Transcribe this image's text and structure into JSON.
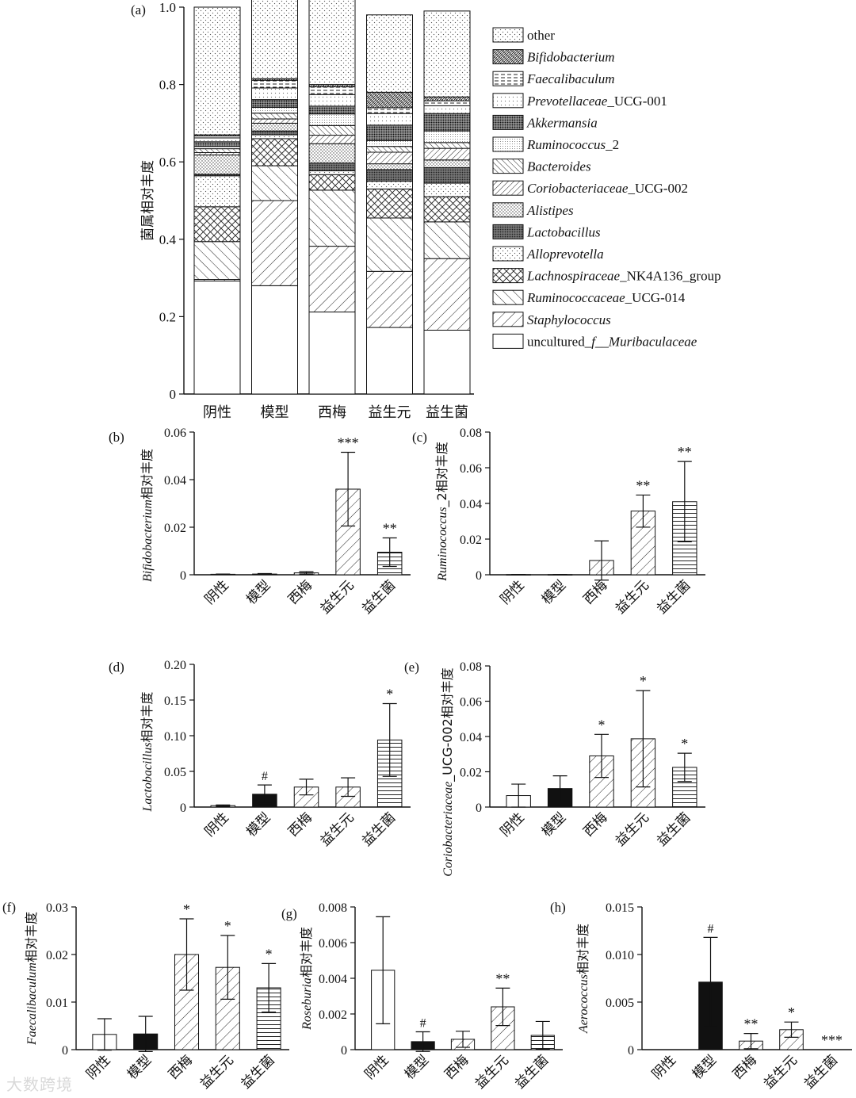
{
  "watermark": "大数跨境",
  "chart_data": [
    {
      "id": "a",
      "panel_label": "(a)",
      "type": "bar",
      "stacked": true,
      "ylabel": "菌属相对丰度",
      "ylim": [
        0,
        1.0
      ],
      "yticks": [
        "0",
        "0.2",
        "0.4",
        "0.6",
        "0.8",
        "1.0"
      ],
      "categories": [
        "阴性",
        "模型",
        "西梅",
        "益生元",
        "益生菌"
      ],
      "legend_position": "right",
      "series": [
        {
          "name": "uncultured_f__Muribaculaceae",
          "roman_prefix": "uncultured_",
          "italic_part": "f__Muribaculaceae",
          "roman_suffix": "",
          "pattern": "solid-white",
          "values": [
            0.292,
            0.28,
            0.212,
            0.172,
            0.165
          ]
        },
        {
          "name": "Staphylococcus",
          "roman_prefix": "",
          "italic_part": "Staphylococcus",
          "roman_suffix": "",
          "pattern": "diag-fwd",
          "values": [
            0.004,
            0.22,
            0.17,
            0.145,
            0.185
          ]
        },
        {
          "name": "Ruminococcaceae_UCG-014",
          "roman_prefix": "",
          "italic_part": "Ruminococcaceae",
          "roman_suffix": "_UCG-014",
          "pattern": "diag-back",
          "values": [
            0.098,
            0.09,
            0.145,
            0.138,
            0.095
          ]
        },
        {
          "name": "Lachnospiraceae_NK4A136_group",
          "roman_prefix": "",
          "italic_part": "Lachnospiraceae",
          "roman_suffix": "_NK4A136_group",
          "pattern": "crosshatch",
          "values": [
            0.09,
            0.07,
            0.04,
            0.075,
            0.065
          ]
        },
        {
          "name": "Alloprevotella",
          "roman_prefix": "",
          "italic_part": "Alloprevotella",
          "roman_suffix": "",
          "pattern": "dots-sparse",
          "values": [
            0.08,
            0.01,
            0.01,
            0.02,
            0.035
          ]
        },
        {
          "name": "Lactobacillus",
          "roman_prefix": "",
          "italic_part": "Lactobacillus",
          "roman_suffix": "",
          "pattern": "dots-dense",
          "values": [
            0.004,
            0.01,
            0.02,
            0.03,
            0.04
          ]
        },
        {
          "name": "Alistipes",
          "roman_prefix": "",
          "italic_part": "Alistipes",
          "roman_suffix": "",
          "pattern": "dots-medium",
          "values": [
            0.05,
            0.02,
            0.05,
            0.015,
            0.02
          ]
        },
        {
          "name": "Coriobacteriaceae_UCG-002",
          "roman_prefix": "",
          "italic_part": "Coriobacteriaceae",
          "roman_suffix": "_UCG-002",
          "pattern": "diag-fwd-dense",
          "values": [
            0.006,
            0.011,
            0.022,
            0.03,
            0.03
          ]
        },
        {
          "name": "Bacteroides",
          "roman_prefix": "",
          "italic_part": "Bacteroides",
          "roman_suffix": "",
          "pattern": "diag-back-dense",
          "values": [
            0.01,
            0.015,
            0.025,
            0.015,
            0.015
          ]
        },
        {
          "name": "Ruminococcus_2",
          "roman_prefix": "",
          "italic_part": "Ruminococcus",
          "roman_suffix": "_2",
          "pattern": "dots-fine",
          "values": [
            0.006,
            0.015,
            0.03,
            0.015,
            0.03
          ]
        },
        {
          "name": "Akkermansia",
          "roman_prefix": "",
          "italic_part": "Akkermansia",
          "roman_suffix": "",
          "pattern": "dots-heavy",
          "values": [
            0.012,
            0.02,
            0.02,
            0.04,
            0.045
          ]
        },
        {
          "name": "Prevotellaceae_UCG-001",
          "roman_prefix": "",
          "italic_part": "Prevotellaceae",
          "roman_suffix": "_UCG-001",
          "pattern": "dots-light",
          "values": [
            0.01,
            0.03,
            0.03,
            0.03,
            0.02
          ]
        },
        {
          "name": "Faecalibaculum",
          "roman_prefix": "",
          "italic_part": "Faecalibaculum",
          "roman_suffix": "",
          "pattern": "hdash",
          "values": [
            0.005,
            0.02,
            0.02,
            0.015,
            0.013
          ]
        },
        {
          "name": "Bifidobacterium",
          "roman_prefix": "",
          "italic_part": "Bifidobacterium",
          "roman_suffix": "",
          "pattern": "wave",
          "values": [
            0.003,
            0.004,
            0.006,
            0.04,
            0.01
          ]
        },
        {
          "name": "other",
          "roman_prefix": "other",
          "italic_part": "",
          "roman_suffix": "",
          "pattern": "dots-sparse",
          "values": [
            0.33,
            0.205,
            0.23,
            0.2,
            0.222
          ]
        }
      ]
    },
    {
      "id": "b",
      "panel_label": "(b)",
      "type": "bar",
      "ylabel_italic": "Bifidobacterium",
      "ylabel_rest": "相对丰度",
      "ylim": [
        0,
        0.06
      ],
      "yticks": [
        "0",
        "0.02",
        "0.04",
        "0.06"
      ],
      "categories": [
        "阴性",
        "模型",
        "西梅",
        "益生元",
        "益生菌"
      ],
      "values": [
        0.0002,
        0.0003,
        0.0008,
        0.036,
        0.0095
      ],
      "errors": [
        0.0001,
        0.0002,
        0.0005,
        0.0155,
        0.006
      ],
      "annotations": [
        "",
        "",
        "",
        "***",
        "**"
      ],
      "patterns": [
        "empty",
        "empty",
        "diag-fwd",
        "diag-fwd",
        "hlines"
      ]
    },
    {
      "id": "c",
      "panel_label": "(c)",
      "type": "bar",
      "ylabel_italic": "Ruminococcus",
      "ylabel_rest": "_2相对丰度",
      "ylim": [
        0,
        0.08
      ],
      "yticks": [
        "0",
        "0.02",
        "0.04",
        "0.06",
        "0.08"
      ],
      "categories": [
        "阴性",
        "模型",
        "西梅",
        "益生元",
        "益生菌"
      ],
      "values": [
        0.0001,
        0.0001,
        0.008,
        0.0357,
        0.041
      ],
      "errors": [
        5e-05,
        5e-05,
        0.011,
        0.009,
        0.0225
      ],
      "annotations": [
        "",
        "",
        "",
        "**",
        "**"
      ],
      "patterns": [
        "empty",
        "empty",
        "diag-fwd",
        "diag-fwd",
        "hlines"
      ]
    },
    {
      "id": "d",
      "panel_label": "(d)",
      "type": "bar",
      "ylabel_italic": "Lactobacillus",
      "ylabel_rest": "相对丰度",
      "ylim": [
        0,
        0.2
      ],
      "yticks": [
        "0",
        "0.05",
        "0.10",
        "0.15",
        "0.20"
      ],
      "categories": [
        "阴性",
        "模型",
        "西梅",
        "益生元",
        "益生菌"
      ],
      "values": [
        0.002,
        0.018,
        0.028,
        0.028,
        0.094
      ],
      "errors": [
        0.001,
        0.013,
        0.011,
        0.013,
        0.051
      ],
      "annotations": [
        "",
        "#",
        "",
        "",
        "*"
      ],
      "patterns": [
        "empty",
        "solid-black",
        "diag-fwd",
        "diag-fwd",
        "hlines"
      ]
    },
    {
      "id": "e",
      "panel_label": "(e)",
      "type": "bar",
      "ylabel_italic": "Coriobacteriaceae",
      "ylabel_rest": "_UCG-002相对丰度",
      "ylim": [
        0,
        0.08
      ],
      "yticks": [
        "0",
        "0.02",
        "0.04",
        "0.06",
        "0.08"
      ],
      "categories": [
        "阴性",
        "模型",
        "西梅",
        "益生元",
        "益生菌"
      ],
      "values": [
        0.0065,
        0.0105,
        0.029,
        0.0387,
        0.0225
      ],
      "errors": [
        0.0065,
        0.0072,
        0.0122,
        0.0273,
        0.008
      ],
      "annotations": [
        "",
        "",
        "*",
        "*",
        "*"
      ],
      "patterns": [
        "empty",
        "solid-black",
        "diag-fwd",
        "diag-fwd",
        "hlines"
      ]
    },
    {
      "id": "f",
      "panel_label": "(f)",
      "type": "bar",
      "ylabel_italic": "Faecalibaculum",
      "ylabel_rest": "相对丰度",
      "ylim": [
        0,
        0.03
      ],
      "yticks": [
        "0",
        "0.01",
        "0.02",
        "0.03"
      ],
      "categories": [
        "阴性",
        "模型",
        "西梅",
        "益生元",
        "益生菌"
      ],
      "values": [
        0.0032,
        0.0033,
        0.02,
        0.0173,
        0.013
      ],
      "errors": [
        0.0033,
        0.0037,
        0.0075,
        0.0067,
        0.0051
      ],
      "annotations": [
        "",
        "",
        "*",
        "*",
        "*"
      ],
      "patterns": [
        "empty",
        "solid-black",
        "diag-fwd",
        "diag-fwd",
        "hlines"
      ]
    },
    {
      "id": "g",
      "panel_label": "(g)",
      "type": "bar",
      "ylabel_italic": "Roseburia",
      "ylabel_rest": "相对丰度",
      "ylim": [
        0,
        0.008
      ],
      "yticks": [
        "0",
        "0.002",
        "0.004",
        "0.006",
        "0.008"
      ],
      "categories": [
        "阴性",
        "模型",
        "西梅",
        "益生元",
        "益生菌"
      ],
      "values": [
        0.00445,
        0.00045,
        0.00058,
        0.0024,
        0.0008
      ],
      "errors": [
        0.003,
        0.00055,
        0.00045,
        0.00105,
        0.00078
      ],
      "annotations": [
        "",
        "#",
        "",
        "**",
        ""
      ],
      "patterns": [
        "empty",
        "solid-black",
        "diag-fwd",
        "diag-fwd",
        "hlines"
      ]
    },
    {
      "id": "h",
      "panel_label": "(h)",
      "type": "bar",
      "ylabel_italic": "Aerococcus",
      "ylabel_rest": "相对丰度",
      "ylim": [
        0,
        0.015
      ],
      "yticks": [
        "0",
        "0.005",
        "0.010",
        "0.015"
      ],
      "categories": [
        "阴性",
        "模型",
        "西梅",
        "益生元",
        "益生菌"
      ],
      "values": [
        0,
        0.0071,
        0.0009,
        0.0021,
        0
      ],
      "errors": [
        0,
        0.0047,
        0.0008,
        0.0008,
        0
      ],
      "annotations": [
        "",
        "#",
        "**",
        "*",
        "***"
      ],
      "patterns": [
        "empty",
        "solid-black",
        "diag-fwd",
        "diag-fwd",
        "hlines"
      ]
    }
  ]
}
